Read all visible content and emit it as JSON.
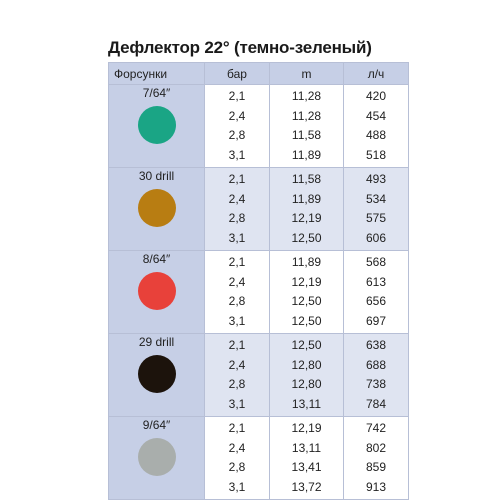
{
  "title": "Дефлектор 22° (темно-зеленый)",
  "headers": {
    "nozzle": "Форсунки",
    "bar": "бар",
    "m": "m",
    "lh": "л/ч"
  },
  "groups": [
    {
      "nozzle": "7/64″",
      "color": "#1aa585",
      "rows": [
        {
          "bar": "2,1",
          "m": "11,28",
          "lh": "420"
        },
        {
          "bar": "2,4",
          "m": "11,28",
          "lh": "454"
        },
        {
          "bar": "2,8",
          "m": "11,58",
          "lh": "488"
        },
        {
          "bar": "3,1",
          "m": "11,89",
          "lh": "518"
        }
      ]
    },
    {
      "nozzle": "30 drill",
      "color": "#b87d12",
      "rows": [
        {
          "bar": "2,1",
          "m": "11,58",
          "lh": "493"
        },
        {
          "bar": "2,4",
          "m": "11,89",
          "lh": "534"
        },
        {
          "bar": "2,8",
          "m": "12,19",
          "lh": "575"
        },
        {
          "bar": "3,1",
          "m": "12,50",
          "lh": "606"
        }
      ]
    },
    {
      "nozzle": "8/64″",
      "color": "#e8413a",
      "rows": [
        {
          "bar": "2,1",
          "m": "11,89",
          "lh": "568"
        },
        {
          "bar": "2,4",
          "m": "12,19",
          "lh": "613"
        },
        {
          "bar": "2,8",
          "m": "12,50",
          "lh": "656"
        },
        {
          "bar": "3,1",
          "m": "12,50",
          "lh": "697"
        }
      ]
    },
    {
      "nozzle": "29 drill",
      "color": "#1c130c",
      "rows": [
        {
          "bar": "2,1",
          "m": "12,50",
          "lh": "638"
        },
        {
          "bar": "2,4",
          "m": "12,80",
          "lh": "688"
        },
        {
          "bar": "2,8",
          "m": "12,80",
          "lh": "738"
        },
        {
          "bar": "3,1",
          "m": "13,11",
          "lh": "784"
        }
      ]
    },
    {
      "nozzle": "9/64″",
      "color": "#a9aeac",
      "rows": [
        {
          "bar": "2,1",
          "m": "12,19",
          "lh": "742"
        },
        {
          "bar": "2,4",
          "m": "13,11",
          "lh": "802"
        },
        {
          "bar": "2,8",
          "m": "13,41",
          "lh": "859"
        },
        {
          "bar": "3,1",
          "m": "13,72",
          "lh": "913"
        }
      ]
    }
  ]
}
